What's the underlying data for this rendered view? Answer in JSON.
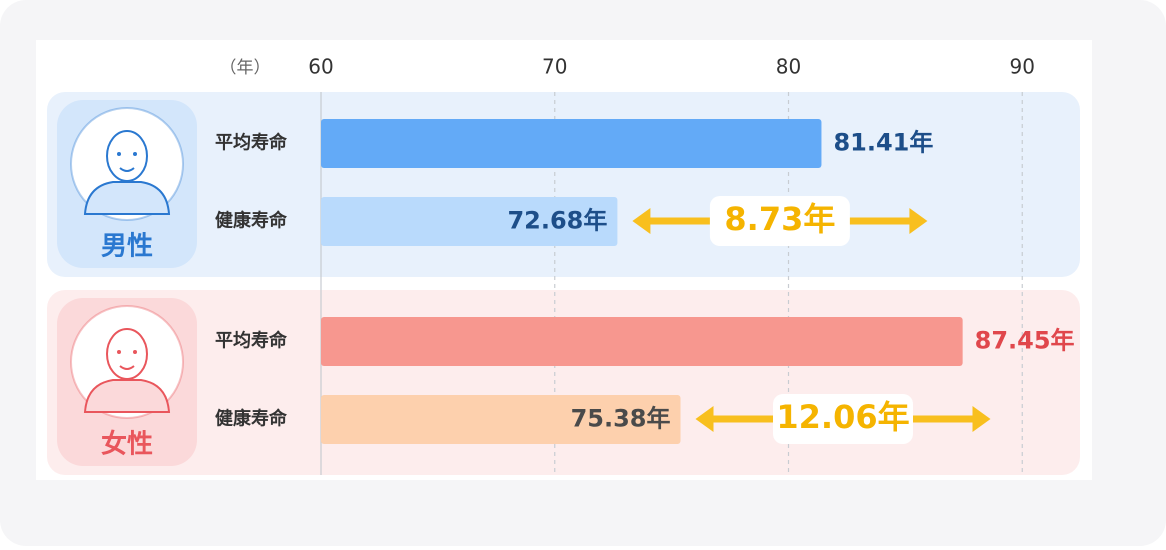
{
  "chart_data": {
    "type": "bar",
    "orientation": "horizontal",
    "x_unit_label": "（年）",
    "xlim": [
      60,
      92
    ],
    "xticks": [
      60,
      70,
      80,
      90
    ],
    "grid": true,
    "groups": [
      {
        "name": "男性",
        "name_color": "#2a78d0",
        "panel_color": "#e8f1fc",
        "icon_color": "#d3e6fb",
        "categories": [
          "平均寿命",
          "健康寿命"
        ],
        "values": [
          81.41,
          72.68
        ],
        "value_labels": [
          "81.41年",
          "72.68年"
        ],
        "colors": [
          "#63aaf7",
          "#b9dafc"
        ],
        "label_colors": [
          "#1d4e89",
          "#1d4e89"
        ],
        "gap": 8.73,
        "gap_label": "8.73年"
      },
      {
        "name": "女性",
        "name_color": "#e9565c",
        "panel_color": "#fdeded",
        "icon_color": "#fbd9da",
        "categories": [
          "平均寿命",
          "健康寿命"
        ],
        "values": [
          87.45,
          75.38
        ],
        "value_labels": [
          "87.45年",
          "75.38年"
        ],
        "colors": [
          "#f7978f",
          "#fdd0ad"
        ],
        "label_colors": [
          "#e0474c",
          "#4a4a4a"
        ],
        "gap": 12.06,
        "gap_label": "12.06年"
      }
    ]
  }
}
